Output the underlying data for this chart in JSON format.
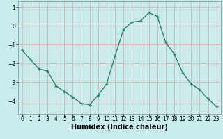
{
  "x": [
    0,
    1,
    2,
    3,
    4,
    5,
    6,
    7,
    8,
    9,
    10,
    11,
    12,
    13,
    14,
    15,
    16,
    17,
    18,
    19,
    20,
    21,
    22,
    23
  ],
  "y": [
    -1.3,
    -1.8,
    -2.3,
    -2.4,
    -3.2,
    -3.5,
    -3.8,
    -4.15,
    -4.2,
    -3.7,
    -3.1,
    -1.6,
    -0.2,
    0.2,
    0.25,
    0.7,
    0.5,
    -0.9,
    -1.5,
    -2.5,
    -3.1,
    -3.4,
    -3.9,
    -4.3
  ],
  "line_color": "#2e7d6e",
  "marker": "+",
  "marker_size": 3,
  "marker_lw": 1.0,
  "line_width": 1.0,
  "bg_color": "#c8ecec",
  "grid_color": "#dbb8b8",
  "xlabel": "Humidex (Indice chaleur)",
  "xlabel_fontsize": 7,
  "tick_fontsize": 5.5,
  "ylim": [
    -4.7,
    1.3
  ],
  "xlim": [
    -0.5,
    23.5
  ],
  "yticks": [
    -4,
    -3,
    -2,
    -1,
    0,
    1
  ],
  "xticks": [
    0,
    1,
    2,
    3,
    4,
    5,
    6,
    7,
    8,
    9,
    10,
    11,
    12,
    13,
    14,
    15,
    16,
    17,
    18,
    19,
    20,
    21,
    22,
    23
  ],
  "spine_color": "#888888"
}
